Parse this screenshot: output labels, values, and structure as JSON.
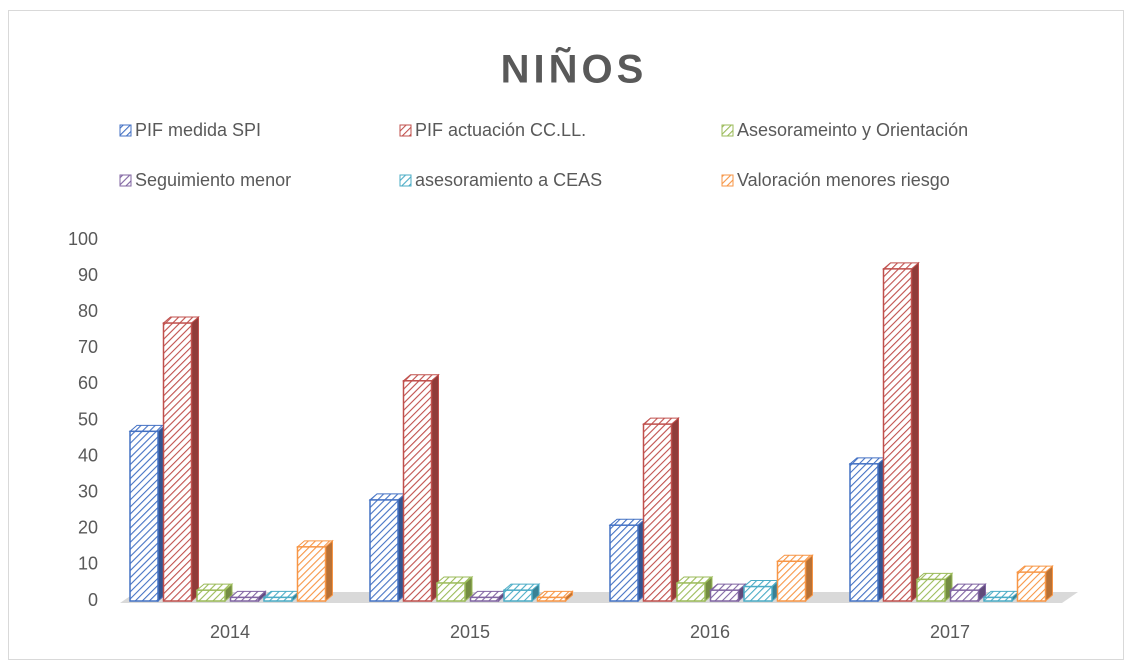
{
  "chart_data": {
    "type": "bar3d",
    "title": "NIÑOS",
    "categories": [
      "2014",
      "2015",
      "2016",
      "2017"
    ],
    "series": [
      {
        "name": "PIF medida SPI",
        "color": "#4472c4",
        "values": [
          47,
          28,
          21,
          38
        ]
      },
      {
        "name": "PIF actuación CC.LL.",
        "color": "#c0504d",
        "values": [
          77,
          61,
          49,
          92
        ]
      },
      {
        "name": "Asesorameinto y Orientación",
        "color": "#9bbb59",
        "values": [
          3,
          5,
          5,
          6
        ]
      },
      {
        "name": "Seguimiento menor",
        "color": "#8064a2",
        "values": [
          1,
          1,
          3,
          3
        ]
      },
      {
        "name": "asesoramiento a CEAS",
        "color": "#4bacc6",
        "values": [
          1,
          3,
          4,
          1
        ]
      },
      {
        "name": "Valoración menores riesgo",
        "color": "#f79646",
        "values": [
          15,
          1,
          11,
          8
        ]
      }
    ],
    "ylim": [
      0,
      100
    ],
    "yticks": [
      0,
      10,
      20,
      30,
      40,
      50,
      60,
      70,
      80,
      90,
      100
    ],
    "grid": false
  }
}
